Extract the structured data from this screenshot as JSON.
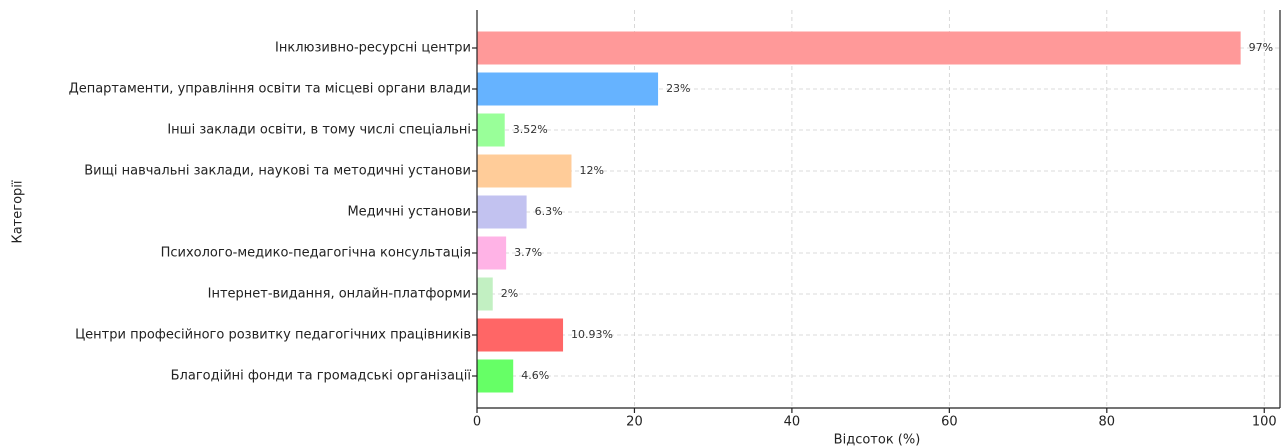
{
  "chart_data": {
    "type": "barh",
    "xlabel": "Відсоток (%)",
    "ylabel": "Категорії",
    "categories": [
      "Інклюзивно-ресурсні центри",
      "Департаменти, управління освіти та місцеві органи влади",
      "Інші заклади освіти, в тому числі спеціальні",
      "Вищі навчальні заклади, наукові та методичні установи",
      "Медичні установи",
      "Психолого-медико-педагогічна консультація",
      "Інтернет-видання, онлайн-платформи",
      "Центри професійного розвитку педагогічних працівників",
      "Благодійні фонди та громадські організації"
    ],
    "values": [
      97,
      23,
      3.52,
      12,
      6.3,
      3.7,
      2,
      10.93,
      4.6
    ],
    "value_labels": [
      "97%",
      "23%",
      "3.52%",
      "12%",
      "6.3%",
      "3.7%",
      "2%",
      "10.93%",
      "4.6%"
    ],
    "colors": [
      "#ff9999",
      "#66b3ff",
      "#99ff99",
      "#ffcc99",
      "#c2c2f0",
      "#ffb3e6",
      "#c2f0c2",
      "#ff6666",
      "#66ff66"
    ],
    "xlim": [
      0,
      102
    ],
    "xticks": [
      0,
      20,
      40,
      60,
      80,
      100
    ],
    "grid": true
  }
}
